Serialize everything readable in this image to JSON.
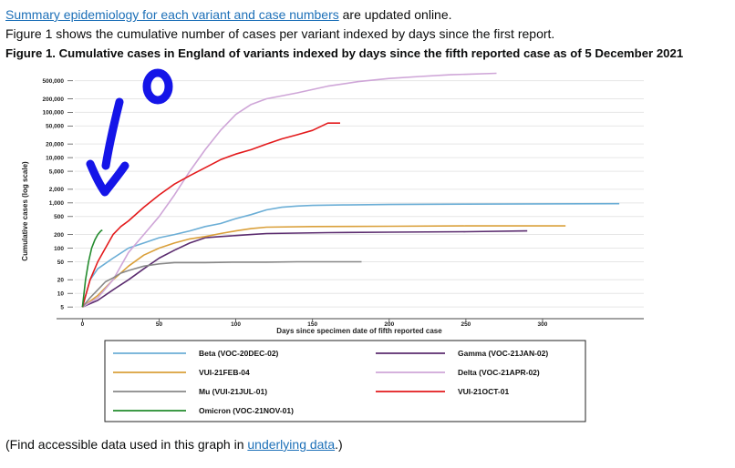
{
  "intro": {
    "link_text": "Summary epidemiology for each variant and case numbers",
    "after_link": " are updated online.",
    "line2": "Figure 1 shows the cumulative number of cases per variant indexed by days since the first report."
  },
  "figure_title": "Figure 1. Cumulative cases in England of variants indexed by days since the fifth reported case as of 5 December 2021",
  "footer": {
    "before_link": "(Find accessible data used in this graph in ",
    "link_text": "underlying data",
    "after_link": ".)"
  },
  "annotation": {
    "text": "0",
    "color": "#1515e8"
  },
  "chart_data": {
    "type": "line",
    "title": "",
    "xlabel": "Days since specimen date of fifth reported case",
    "ylabel": "Cumulative cases (log scale)",
    "y_scale": "log",
    "xlim": [
      -5,
      366
    ],
    "ylim": [
      4,
      900000
    ],
    "x_ticks": [
      0,
      50,
      100,
      150,
      200,
      250,
      300
    ],
    "y_ticks": [
      5,
      10,
      20,
      50,
      100,
      200,
      500,
      1000,
      2000,
      5000,
      10000,
      20000,
      50000,
      100000,
      200000,
      500000
    ],
    "y_tick_labels": [
      "5",
      "10",
      "20",
      "50",
      "100",
      "200",
      "500",
      "1,000",
      "2,000",
      "5,000",
      "10,000",
      "20,000",
      "50,000",
      "100,000",
      "200,000",
      "500,000"
    ],
    "grid": true,
    "legend_position": "bottom",
    "series": [
      {
        "name": "Beta (VOC-20DEC-02)",
        "color": "#6baed6",
        "x": [
          0,
          5,
          10,
          20,
          30,
          40,
          50,
          60,
          70,
          80,
          90,
          100,
          110,
          120,
          130,
          140,
          150,
          170,
          200,
          250,
          300,
          350
        ],
        "y": [
          5,
          20,
          35,
          60,
          100,
          130,
          170,
          200,
          240,
          300,
          350,
          450,
          550,
          700,
          800,
          850,
          880,
          900,
          920,
          940,
          950,
          960
        ]
      },
      {
        "name": "Gamma (VOC-21JAN-02)",
        "color": "#5b2c6f",
        "x": [
          0,
          10,
          20,
          30,
          40,
          50,
          60,
          70,
          80,
          90,
          100,
          110,
          120,
          140,
          160,
          200,
          250,
          290
        ],
        "y": [
          5,
          7,
          12,
          20,
          35,
          60,
          90,
          130,
          170,
          180,
          190,
          200,
          210,
          215,
          220,
          225,
          230,
          240
        ]
      },
      {
        "name": "VUI-21FEB-04",
        "color": "#daa03a",
        "x": [
          0,
          10,
          20,
          30,
          40,
          50,
          60,
          70,
          80,
          90,
          100,
          110,
          120,
          150,
          200,
          250,
          315
        ],
        "y": [
          5,
          9,
          20,
          40,
          70,
          100,
          130,
          160,
          180,
          210,
          240,
          270,
          290,
          300,
          305,
          310,
          310
        ]
      },
      {
        "name": "Delta (VOC-21APR-02)",
        "color": "#cfa6d8",
        "x": [
          0,
          10,
          20,
          30,
          40,
          50,
          60,
          70,
          80,
          90,
          100,
          110,
          120,
          140,
          160,
          180,
          200,
          220,
          240,
          270
        ],
        "y": [
          5,
          8,
          20,
          80,
          200,
          500,
          1500,
          5000,
          15000,
          40000,
          90000,
          150000,
          200000,
          270000,
          380000,
          480000,
          560000,
          620000,
          680000,
          730000
        ]
      },
      {
        "name": "Mu (VUI-21JUL-01)",
        "color": "#888888",
        "x": [
          0,
          5,
          10,
          15,
          20,
          25,
          30,
          40,
          50,
          60,
          80,
          100,
          120,
          140,
          160,
          182
        ],
        "y": [
          5,
          8,
          12,
          18,
          22,
          28,
          32,
          40,
          45,
          48,
          48,
          49,
          49,
          50,
          50,
          50
        ]
      },
      {
        "name": "VUI-21OCT-01",
        "color": "#e31a1c",
        "x": [
          0,
          5,
          10,
          15,
          20,
          25,
          30,
          40,
          50,
          60,
          70,
          80,
          90,
          100,
          110,
          120,
          130,
          140,
          150,
          160,
          168
        ],
        "y": [
          5,
          20,
          50,
          100,
          200,
          300,
          400,
          800,
          1500,
          2600,
          4000,
          6000,
          9000,
          12000,
          15000,
          20000,
          26000,
          32000,
          40000,
          58000,
          58000
        ]
      },
      {
        "name": "Omicron (VOC-21NOV-01)",
        "color": "#238b2d",
        "x": [
          0,
          2,
          4,
          6,
          8,
          10,
          12,
          13
        ],
        "y": [
          5,
          20,
          50,
          100,
          150,
          200,
          240,
          250
        ]
      }
    ]
  }
}
